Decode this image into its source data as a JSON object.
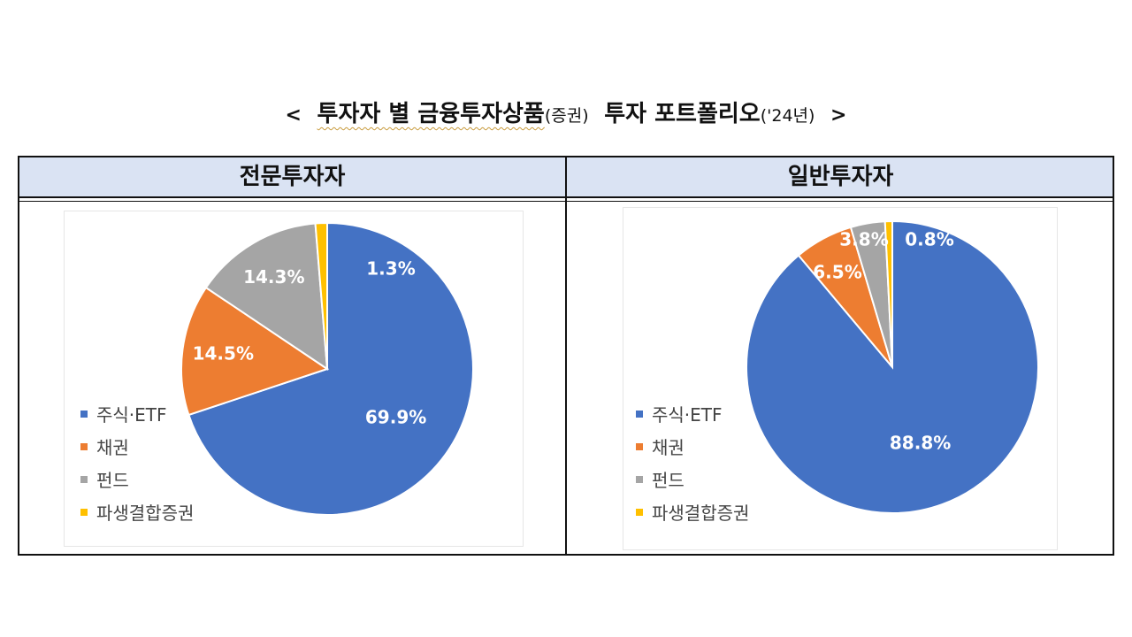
{
  "title": {
    "open": "<",
    "main": "투자자 별 금융투자상품",
    "sub": "(증권)",
    "main2": "투자 포트폴리오",
    "year": "('24년)",
    "close": ">"
  },
  "headers": [
    "전문투자자",
    "일반투자자"
  ],
  "legend": [
    "주식·ETF",
    "채권",
    "펀드",
    "파생결합증권"
  ],
  "colors": [
    "#4472c4",
    "#ed7d31",
    "#a5a5a5",
    "#ffc000"
  ],
  "chart_data": [
    {
      "type": "pie",
      "title": "전문투자자",
      "categories": [
        "주식·ETF",
        "채권",
        "펀드",
        "파생결합증권"
      ],
      "values": [
        69.9,
        14.5,
        14.3,
        1.3
      ],
      "labels": [
        "69.9%",
        "14.5%",
        "14.3%",
        "1.3%"
      ],
      "legend_position": "left"
    },
    {
      "type": "pie",
      "title": "일반투자자",
      "categories": [
        "주식·ETF",
        "채권",
        "펀드",
        "파생결합증권"
      ],
      "values": [
        88.8,
        6.5,
        3.8,
        0.8
      ],
      "labels": [
        "88.8%",
        "6.5%",
        "3.8%",
        "0.8%"
      ],
      "legend_position": "left"
    }
  ]
}
